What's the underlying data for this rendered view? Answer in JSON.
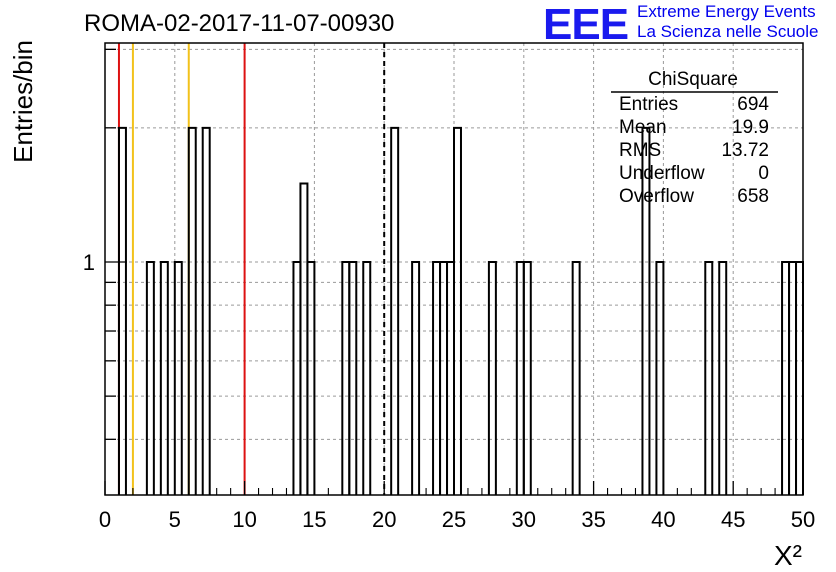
{
  "header": {
    "title": "ROMA-02-2017-11-07-00930",
    "logo_letters": "EEE",
    "logo_line1": "Extreme Energy Events",
    "logo_line2": "La Scienza nelle Scuole"
  },
  "stats": {
    "name": "ChiSquare",
    "rows": [
      {
        "label": "Entries",
        "value": "694"
      },
      {
        "label": "Mean",
        "value": "19.9"
      },
      {
        "label": "RMS",
        "value": "13.72"
      },
      {
        "label": "Underflow",
        "value": "0"
      },
      {
        "label": "Overflow",
        "value": "658"
      }
    ]
  },
  "colors": {
    "axis": "#000000",
    "grid": "#9a9a9a",
    "hist": "#000000",
    "red": "#dd1111",
    "yellow": "#f2c21b",
    "logo_blue": "#1a1aee"
  },
  "chart_data": {
    "type": "histogram",
    "xlabel": "X²",
    "ylabel": "Entries/bin",
    "xlim": [
      0,
      50
    ],
    "ylim": [
      0.3,
      3.1
    ],
    "y_scale": "log",
    "grid": true,
    "bin_width": 0.5,
    "x_tick_labels": [
      "0",
      "5",
      "10",
      "15",
      "20",
      "25",
      "30",
      "35",
      "40",
      "45",
      "50"
    ],
    "y_tick_labels": [
      {
        "value": 1,
        "label": "1"
      }
    ],
    "bins": [
      {
        "x": 1.0,
        "count": 2
      },
      {
        "x": 3.0,
        "count": 1
      },
      {
        "x": 4.0,
        "count": 1
      },
      {
        "x": 5.0,
        "count": 1
      },
      {
        "x": 6.0,
        "count": 2
      },
      {
        "x": 7.0,
        "count": 2
      },
      {
        "x": 13.5,
        "count": 1
      },
      {
        "x": 14.0,
        "count": 1.5
      },
      {
        "x": 14.5,
        "count": 1
      },
      {
        "x": 17.0,
        "count": 1
      },
      {
        "x": 17.5,
        "count": 1
      },
      {
        "x": 18.5,
        "count": 1
      },
      {
        "x": 20.5,
        "count": 2
      },
      {
        "x": 22.0,
        "count": 1
      },
      {
        "x": 23.5,
        "count": 1
      },
      {
        "x": 24.0,
        "count": 1
      },
      {
        "x": 24.5,
        "count": 1
      },
      {
        "x": 25.0,
        "count": 2
      },
      {
        "x": 27.5,
        "count": 1
      },
      {
        "x": 29.5,
        "count": 1
      },
      {
        "x": 30.0,
        "count": 1
      },
      {
        "x": 33.5,
        "count": 1
      },
      {
        "x": 38.5,
        "count": 2
      },
      {
        "x": 39.5,
        "count": 1
      },
      {
        "x": 43.0,
        "count": 1
      },
      {
        "x": 44.0,
        "count": 1
      },
      {
        "x": 48.5,
        "count": 1
      },
      {
        "x": 49.0,
        "count": 1
      },
      {
        "x": 49.5,
        "count": 1
      }
    ],
    "reference_lines": [
      {
        "x": 1,
        "color": "red",
        "style": "solid"
      },
      {
        "x": 2,
        "color": "yellow",
        "style": "solid"
      },
      {
        "x": 6,
        "color": "yellow",
        "style": "solid"
      },
      {
        "x": 10,
        "color": "red",
        "style": "solid"
      },
      {
        "x": 20,
        "color": "black",
        "style": "dashed"
      }
    ]
  }
}
